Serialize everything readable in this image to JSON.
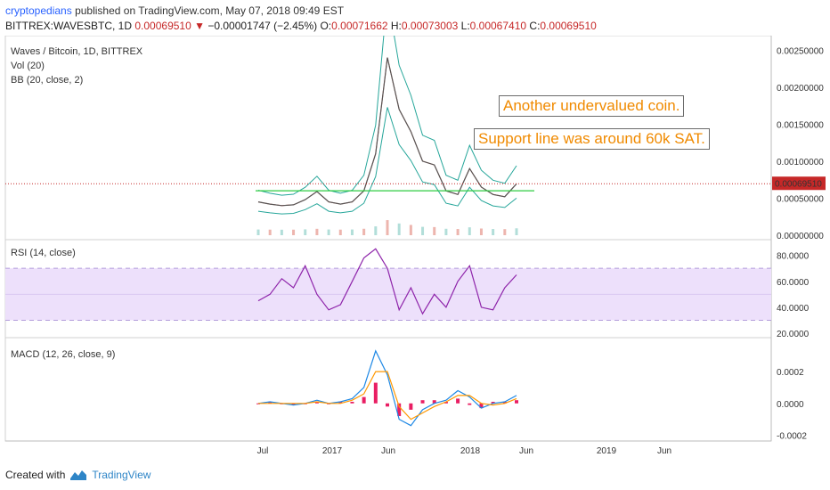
{
  "header": {
    "author": "cryptopedians",
    "published_text": "published on TradingView.com, May 07, 2018 09:49 EST",
    "symbol": "BITTREX:WAVESBTC, 1D",
    "last": "0.00069510",
    "change": "−0.00001747 (−2.45%)",
    "o_label": "O:",
    "o": "0.00071662",
    "h_label": "H:",
    "h": "0.00073003",
    "l_label": "L:",
    "l": "0.00067410",
    "c_label": "C:",
    "c": "0.00069510"
  },
  "legend": {
    "title": "Waves / Bitcoin, 1D, BITTREX",
    "vol": "Vol (20)",
    "bb": "BB (20, close, 2)",
    "rsi": "RSI (14, close)",
    "macd": "MACD (12, 26, close, 9)"
  },
  "annotations": {
    "note1": "Another undervalued coin.",
    "note2": "Support line was around 60k SAT."
  },
  "price_axis": {
    "ticks": [
      "0.00250000",
      "0.00200000",
      "0.00150000",
      "0.00100000",
      "0.00050000",
      "0.00000000"
    ],
    "last_price_label": "0.00069510"
  },
  "rsi_axis": {
    "ticks": [
      "80.0000",
      "60.0000",
      "40.0000",
      "20.0000"
    ]
  },
  "macd_axis": {
    "ticks": [
      "0.0002",
      "0.0000",
      "-0.0002"
    ]
  },
  "time_axis": {
    "ticks": [
      "Jul",
      "2017",
      "Jun",
      "2018",
      "Jun",
      "2019",
      "Jun"
    ]
  },
  "footer": {
    "created": "Created with",
    "brand": "TradingView"
  },
  "colors": {
    "price": "#c0392b",
    "bb_band": "#26a69a",
    "bb_basis": "#e74c3c",
    "support": "#2ecc40",
    "rsi": "#8e24aa",
    "rsi_band": "#ede0fb",
    "macd": "#1e88e5",
    "signal": "#ff9800",
    "hist": "#e91e63",
    "last_line": "#c62828"
  },
  "chart_data": [
    {
      "type": "line",
      "title": "Waves / Bitcoin, 1D, BITTREX",
      "x": [
        "2016-07",
        "2016-08",
        "2016-09",
        "2016-10",
        "2016-11",
        "2016-12",
        "2017-01",
        "2017-02",
        "2017-03",
        "2017-04",
        "2017-05",
        "2017-06",
        "2017-07",
        "2017-08",
        "2017-09",
        "2017-10",
        "2017-11",
        "2017-12",
        "2018-01",
        "2018-02",
        "2018-03",
        "2018-04",
        "2018-05"
      ],
      "series": [
        {
          "values": [
            0.00045,
            0.00042,
            0.0004,
            0.00041,
            0.00048,
            0.00059,
            0.00045,
            0.00042,
            0.00045,
            0.0006,
            0.0011,
            0.0024,
            0.0017,
            0.0014,
            0.001,
            0.00095,
            0.0006,
            0.00055,
            0.0009,
            0.00065,
            0.00055,
            0.00052,
            0.0006951
          ]
        }
      ],
      "support_level": 0.0006,
      "last_price": 0.0006951,
      "ylim": [
        0,
        0.0026
      ]
    },
    {
      "type": "line",
      "title": "RSI (14, close)",
      "x": [
        "2016-07",
        "2016-08",
        "2016-09",
        "2016-10",
        "2016-11",
        "2016-12",
        "2017-01",
        "2017-02",
        "2017-03",
        "2017-04",
        "2017-05",
        "2017-06",
        "2017-07",
        "2017-08",
        "2017-09",
        "2017-10",
        "2017-11",
        "2017-12",
        "2018-01",
        "2018-02",
        "2018-03",
        "2018-04",
        "2018-05"
      ],
      "series": [
        {
          "values": [
            45,
            50,
            62,
            55,
            72,
            50,
            38,
            42,
            60,
            78,
            85,
            70,
            38,
            55,
            35,
            50,
            40,
            60,
            72,
            40,
            38,
            55,
            65
          ]
        }
      ],
      "bands": [
        30,
        70
      ],
      "ylim": [
        18,
        90
      ]
    },
    {
      "type": "line",
      "title": "MACD (12, 26, close, 9)",
      "x": [
        "2016-07",
        "2016-08",
        "2016-09",
        "2016-10",
        "2016-11",
        "2016-12",
        "2017-01",
        "2017-02",
        "2017-03",
        "2017-04",
        "2017-05",
        "2017-06",
        "2017-07",
        "2017-08",
        "2017-09",
        "2017-10",
        "2017-11",
        "2017-12",
        "2018-01",
        "2018-02",
        "2018-03",
        "2018-04",
        "2018-05"
      ],
      "series": [
        {
          "values": [
            0,
            1e-05,
            0,
            -1e-05,
            0,
            2e-05,
            0,
            1e-05,
            3e-05,
            0.0001,
            0.00033,
            0.00018,
            -0.0001,
            -0.00014,
            -4e-05,
            0,
            2e-05,
            8e-05,
            4e-05,
            -3e-05,
            0,
            1e-05,
            5e-05
          ]
        },
        {
          "values": [
            0,
            0,
            0,
            0,
            0,
            1e-05,
            0,
            0,
            2e-05,
            6e-05,
            0.0002,
            0.0002,
            -2e-05,
            -0.0001,
            -6e-05,
            -2e-05,
            1e-05,
            5e-05,
            5e-05,
            0,
            -1e-05,
            0,
            3e-05
          ]
        }
      ],
      "ylim": [
        -0.00022,
        0.00038
      ]
    }
  ]
}
